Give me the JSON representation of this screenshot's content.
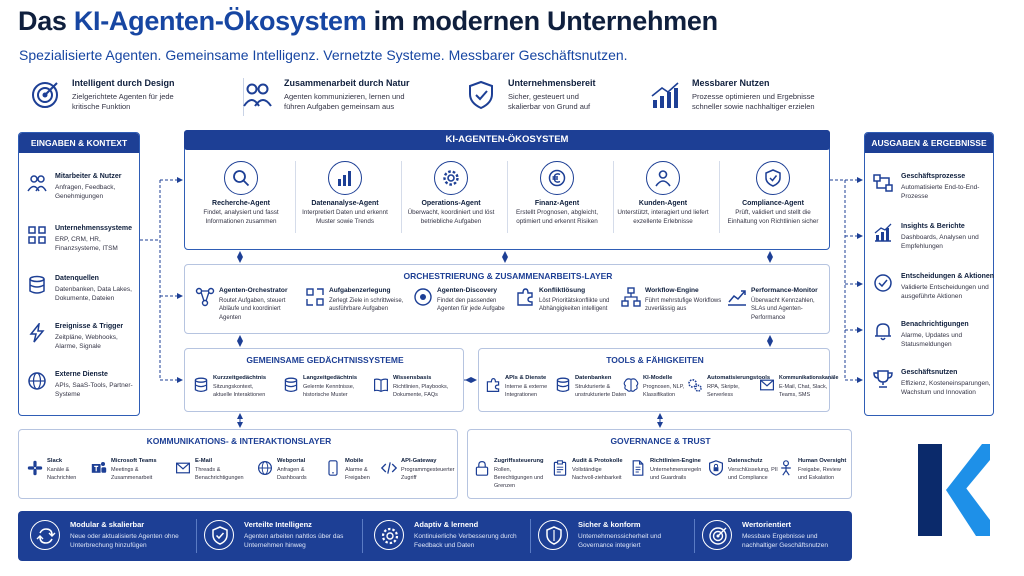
{
  "header": {
    "title_pre": "Das ",
    "title_accent": "KI-Agenten-Ökosystem",
    "title_post": " im modernen Unternehmen",
    "subtitle": "Spezialisierte Agenten. Gemeinsame Intelligenz. Vernetzte Systeme. Messbarer Geschäftsnutzen."
  },
  "pillars": [
    {
      "title": "Intelligent durch Design",
      "desc": "Zielgerichtete Agenten für jede kritische Funktion",
      "icon": "target-icon"
    },
    {
      "title": "Zusammenarbeit durch Natur",
      "desc": "Agenten kommunizieren, lernen und führen Aufgaben gemeinsam aus",
      "icon": "team-icon"
    },
    {
      "title": "Unternehmensbereit",
      "desc": "Sicher, gesteuert und skalierbar von Grund auf",
      "icon": "shield-check-icon"
    },
    {
      "title": "Messbarer Nutzen",
      "desc": "Prozesse optimieren und Ergebnisse schneller sowie nachhaltiger erzielen",
      "icon": "growth-chart-icon"
    }
  ],
  "inputs": {
    "header": "EINGABEN & KONTEXT",
    "items": [
      {
        "title": "Mitarbeiter & Nutzer",
        "desc": "Anfragen, Feedback, Genehmigungen",
        "icon": "users-icon"
      },
      {
        "title": "Unternehmenssysteme",
        "desc": "ERP, CRM, HR, Finanzsysteme, ITSM",
        "icon": "grid-icon"
      },
      {
        "title": "Datenquellen",
        "desc": "Datenbanken, Data Lakes, Dokumente, Dateien",
        "icon": "database-icon"
      },
      {
        "title": "Ereignisse & Trigger",
        "desc": "Zeitpläne, Webhooks, Alarme, Signale",
        "icon": "lightning-icon"
      },
      {
        "title": "Externe Dienste",
        "desc": "APIs, SaaS-Tools, Partner-Systeme",
        "icon": "globe-icon"
      }
    ]
  },
  "outputs": {
    "header": "AUSGABEN & ERGEBNISSE",
    "items": [
      {
        "title": "Geschäftsprozesse",
        "desc": "Automatisierte End-to-End-Prozesse",
        "icon": "process-icon"
      },
      {
        "title": "Insights & Berichte",
        "desc": "Dashboards, Analysen und Empfehlungen",
        "icon": "chart-icon"
      },
      {
        "title": "Entscheidungen & Aktionen",
        "desc": "Validierte Entscheidungen und ausgeführte Aktionen",
        "icon": "check-circle-icon"
      },
      {
        "title": "Benachrichtigungen",
        "desc": "Alarme, Updates und Statusmeldungen",
        "icon": "bell-icon"
      },
      {
        "title": "Geschäftsnutzen",
        "desc": "Effizienz, Kosteneinsparungen, Wachstum und Innovation",
        "icon": "trophy-icon"
      }
    ]
  },
  "ecosystem": {
    "header": "KI-AGENTEN-ÖKOSYSTEM",
    "agents": [
      {
        "title": "Recherche-Agent",
        "desc": "Findet, analysiert und fasst Informationen zusammen",
        "icon": "search-icon"
      },
      {
        "title": "Datenanalyse-Agent",
        "desc": "Interpretiert Daten und erkennt Muster sowie Trends",
        "icon": "bar-chart-icon"
      },
      {
        "title": "Operations-Agent",
        "desc": "Überwacht, koordiniert und löst betriebliche Aufgaben",
        "icon": "gear-icon"
      },
      {
        "title": "Finanz-Agent",
        "desc": "Erstellt Prognosen, abgleicht, optimiert und erkennt Risiken",
        "icon": "euro-icon"
      },
      {
        "title": "Kunden-Agent",
        "desc": "Unterstützt, interagiert und liefert exzellente Erlebnisse",
        "icon": "person-icon"
      },
      {
        "title": "Compliance-Agent",
        "desc": "Prüft, validiert und stellt die Einhaltung von Richtlinien sicher",
        "icon": "shield-icon"
      }
    ]
  },
  "orchestration": {
    "header": "ORCHESTRIERUNG & ZUSAMMENARBEITS-LAYER",
    "items": [
      {
        "title": "Agenten-Orchestrator",
        "desc": "Routet Aufgaben, steuert Abläufe und koordiniert Agenten",
        "icon": "network-icon"
      },
      {
        "title": "Aufgabenzerlegung",
        "desc": "Zerlegt Ziele in schrittweise, ausführbare Aufgaben",
        "icon": "split-icon"
      },
      {
        "title": "Agenten-Discovery",
        "desc": "Findet den passenden Agenten für jede Aufgabe",
        "icon": "discovery-icon"
      },
      {
        "title": "Konfliktlösung",
        "desc": "Löst Prioritätskonflikte und Abhängigkeiten intelligent",
        "icon": "puzzle-icon"
      },
      {
        "title": "Workflow-Engine",
        "desc": "Führt mehrstufige Workflows zuverlässig aus",
        "icon": "workflow-icon"
      },
      {
        "title": "Performance-Monitor",
        "desc": "Überwacht Kennzahlen, SLAs und Agenten-Performance",
        "icon": "trend-icon"
      }
    ]
  },
  "memory": {
    "header": "GEMEINSAME GEDÄCHTNISSYSTEME",
    "items": [
      {
        "title": "Kurzzeitgedächtnis",
        "desc": "Sitzungskontext, aktuelle Interaktionen",
        "icon": "database-icon"
      },
      {
        "title": "Langzeitgedächtnis",
        "desc": "Gelernte Kenntnisse, historische Muster",
        "icon": "database-icon"
      },
      {
        "title": "Wissensbasis",
        "desc": "Richtlinien, Playbooks, Dokumente, FAQs",
        "icon": "book-icon"
      }
    ]
  },
  "tools": {
    "header": "TOOLS & FÄHIGKEITEN",
    "items": [
      {
        "title": "APIs & Dienste",
        "desc": "Interne & externe Integrationen",
        "icon": "puzzle-icon"
      },
      {
        "title": "Datenbanken",
        "desc": "Strukturierte & unstrukturierte Daten",
        "icon": "database-icon"
      },
      {
        "title": "KI-Modelle",
        "desc": "Prognosen, NLP, Klassifikation",
        "icon": "brain-icon"
      },
      {
        "title": "Automatisierungstools",
        "desc": "RPA, Skripte, Serverless",
        "icon": "gears-icon"
      },
      {
        "title": "Kommunikationskanäle",
        "desc": "E-Mail, Chat, Slack, Teams, SMS",
        "icon": "mail-icon"
      }
    ]
  },
  "communication": {
    "header": "KOMMUNIKATIONS- & INTERAKTIONSLAYER",
    "items": [
      {
        "title": "Slack",
        "desc": "Kanäle & Nachrichten",
        "icon": "slack-icon"
      },
      {
        "title": "Microsoft Teams",
        "desc": "Meetings & Zusammenarbeit",
        "icon": "teams-icon"
      },
      {
        "title": "E-Mail",
        "desc": "Threads & Benachrichtigungen",
        "icon": "mail-icon"
      },
      {
        "title": "Webportal",
        "desc": "Anfragen & Dashboards",
        "icon": "globe-icon"
      },
      {
        "title": "Mobile",
        "desc": "Alarme & Freigaben",
        "icon": "mobile-icon"
      },
      {
        "title": "API-Gateway",
        "desc": "Programmgesteuerter Zugriff",
        "icon": "api-icon"
      }
    ]
  },
  "governance": {
    "header": "GOVERNANCE & TRUST",
    "items": [
      {
        "title": "Zugriffssteuerung",
        "desc": "Rollen, Berechtigungen und Grenzen",
        "icon": "lock-icon"
      },
      {
        "title": "Audit & Protokolle",
        "desc": "Vollständige Nachvoll-ziehbarkeit",
        "icon": "clipboard-icon"
      },
      {
        "title": "Richtlinien-Engine",
        "desc": "Unternehmensregeln und Guardrails",
        "icon": "document-icon"
      },
      {
        "title": "Datenschutz",
        "desc": "Verschlüsselung, PII und Compliance",
        "icon": "shield-lock-icon"
      },
      {
        "title": "Human Oversight",
        "desc": "Freigabe, Review und Eskalation",
        "icon": "human-icon"
      }
    ]
  },
  "footer": [
    {
      "title": "Modular & skalierbar",
      "desc": "Neue oder aktualisierte Agenten ohne Unterbrechung hinzufügen",
      "icon": "refresh-icon"
    },
    {
      "title": "Verteilte Intelligenz",
      "desc": "Agenten arbeiten nahtlos über das Unternehmen hinweg",
      "icon": "shield-check-icon"
    },
    {
      "title": "Adaptiv & lernend",
      "desc": "Kontinuierliche Verbesserung durch Feedback und Daten",
      "icon": "gear-arrows-icon"
    },
    {
      "title": "Sicher & konform",
      "desc": "Unternehmenssicherheit und Governance integriert",
      "icon": "shield-icon"
    },
    {
      "title": "Wertorientiert",
      "desc": "Messbare Ergebnisse und nachhaltiger Geschäftsnutzen",
      "icon": "target-icon"
    }
  ],
  "colors": {
    "navy": "#1d3f95",
    "accent": "#1746a2",
    "logo_dark": "#0b2a6b",
    "logo_light": "#1e90e8"
  }
}
